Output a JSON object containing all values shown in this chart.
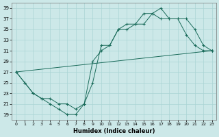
{
  "xlabel": "Humidex (Indice chaleur)",
  "xlim": [
    -0.5,
    23.5
  ],
  "ylim": [
    18,
    40
  ],
  "xticks": [
    0,
    1,
    2,
    3,
    4,
    5,
    6,
    7,
    8,
    9,
    10,
    11,
    12,
    13,
    14,
    15,
    16,
    17,
    18,
    19,
    20,
    21,
    22,
    23
  ],
  "yticks": [
    19,
    21,
    23,
    25,
    27,
    29,
    31,
    33,
    35,
    37,
    39
  ],
  "bg_color": "#cce8e8",
  "grid_color": "#aad4d4",
  "line_color": "#1a6b5a",
  "series1_x": [
    0,
    1,
    2,
    3,
    4,
    5,
    6,
    7,
    8,
    9,
    10,
    11,
    12,
    13,
    14,
    15,
    16,
    17,
    18,
    19,
    20,
    21,
    22,
    23
  ],
  "series1_y": [
    27,
    25,
    23,
    22,
    21,
    20,
    19,
    19,
    21,
    25,
    32,
    32,
    35,
    36,
    36,
    36,
    38,
    39,
    37,
    37,
    34,
    32,
    31,
    31
  ],
  "series2_x": [
    0,
    1,
    2,
    3,
    4,
    5,
    6,
    7,
    8,
    9,
    10,
    11,
    12,
    13,
    14,
    15,
    16,
    17,
    18,
    19,
    20,
    21,
    22,
    23
  ],
  "series2_y": [
    27,
    25,
    23,
    22,
    22,
    21,
    21,
    20,
    21,
    29,
    31,
    32,
    35,
    35,
    36,
    38,
    38,
    37,
    37,
    37,
    37,
    35,
    32,
    31
  ],
  "series3_x": [
    0,
    23
  ],
  "series3_y": [
    27,
    31
  ]
}
